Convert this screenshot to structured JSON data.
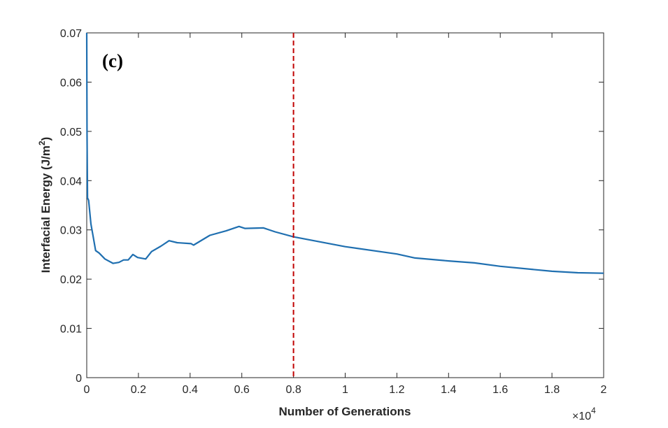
{
  "chart_data": {
    "type": "line",
    "title": "",
    "panel_label": "(c)",
    "xlabel": "Number of Generations",
    "ylabel_main": "Interfacial Energy (J/m",
    "ylabel_sup": "2",
    "ylabel_end": ")",
    "x_exponent_base": "×10",
    "x_exponent_power": "4",
    "xlim": [
      0,
      20000
    ],
    "ylim": [
      0,
      0.07
    ],
    "xticks": [
      0,
      2000,
      4000,
      6000,
      8000,
      10000,
      12000,
      14000,
      16000,
      18000,
      20000
    ],
    "xtick_labels": [
      "0",
      "0.2",
      "0.4",
      "0.6",
      "0.8",
      "1",
      "1.2",
      "1.4",
      "1.6",
      "1.8",
      "2"
    ],
    "yticks": [
      0,
      0.01,
      0.02,
      0.03,
      0.04,
      0.05,
      0.06,
      0.07
    ],
    "ytick_labels": [
      "0",
      "0.01",
      "0.02",
      "0.03",
      "0.04",
      "0.05",
      "0.06",
      "0.07"
    ],
    "grid": false,
    "vline": {
      "x": 8000,
      "color": "#c00000",
      "style": "dashed"
    },
    "series": [
      {
        "name": "Interfacial Energy",
        "color": "#1f6fb0",
        "x": [
          0,
          10,
          30,
          73,
          162,
          244,
          343,
          479,
          704,
          1020,
          1245,
          1426,
          1606,
          1786,
          1967,
          2282,
          2508,
          2869,
          3185,
          3500,
          4041,
          4132,
          4763,
          5394,
          5891,
          6116,
          6838,
          7289,
          7993,
          10000,
          12000,
          12700,
          14000,
          15000,
          16000,
          18000,
          19000,
          20000
        ],
        "y": [
          0.07,
          0.05,
          0.0365,
          0.036,
          0.0312,
          0.0288,
          0.0258,
          0.0253,
          0.0241,
          0.0232,
          0.0234,
          0.0239,
          0.0239,
          0.025,
          0.0244,
          0.0241,
          0.0256,
          0.0267,
          0.0278,
          0.0274,
          0.0272,
          0.0269,
          0.0289,
          0.0298,
          0.0307,
          0.0303,
          0.0304,
          0.0296,
          0.0286,
          0.0266,
          0.0251,
          0.0243,
          0.0237,
          0.0233,
          0.0226,
          0.0216,
          0.0213,
          0.0212
        ]
      }
    ]
  }
}
